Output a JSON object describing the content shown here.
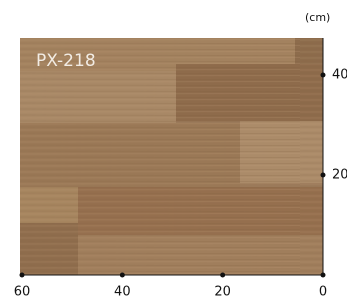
{
  "product_code": "PX-218",
  "unit": "(cm)",
  "scale": {
    "x_ticks": [
      60,
      40,
      20,
      0
    ],
    "y_ticks": [
      40,
      20
    ]
  }
}
